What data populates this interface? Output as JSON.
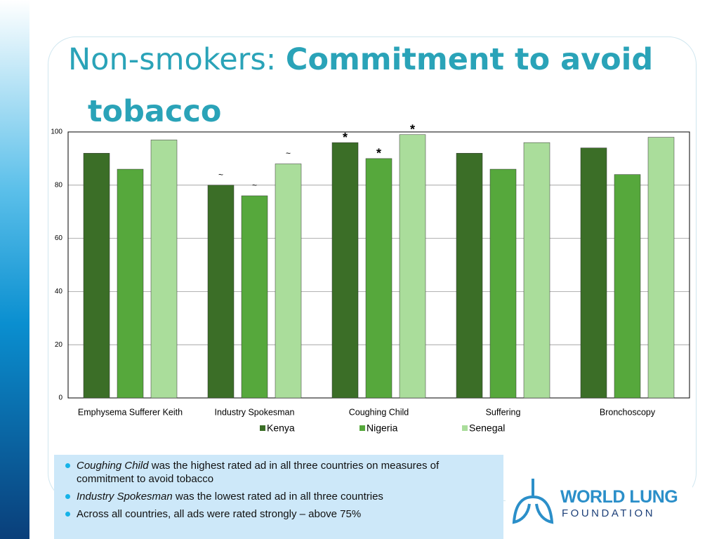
{
  "slide_title": {
    "light": "Non-smokers:",
    "bold": "Commitment to avoid tobacco"
  },
  "chart_data": {
    "type": "bar",
    "categories": [
      "Emphysema Sufferer Keith",
      "Industry Spokesman",
      "Coughing Child",
      "Suffering",
      "Bronchoscopy"
    ],
    "series": [
      {
        "name": "Kenya",
        "color": "#3b6e27",
        "values": [
          92,
          80,
          96,
          92,
          94
        ],
        "markers": [
          null,
          "~",
          "*",
          null,
          null
        ]
      },
      {
        "name": "Nigeria",
        "color": "#56a83c",
        "values": [
          86,
          76,
          90,
          86,
          84
        ],
        "markers": [
          null,
          "~",
          "*",
          null,
          null
        ]
      },
      {
        "name": "Senegal",
        "color": "#aadd9b",
        "values": [
          97,
          88,
          99,
          96,
          98
        ],
        "markers": [
          null,
          "~",
          "*",
          null,
          null
        ]
      }
    ],
    "ylim": [
      0,
      100
    ],
    "yticks": [
      0,
      20,
      40,
      60,
      80,
      100
    ],
    "grid": true,
    "legend": "bottom"
  },
  "bullets": [
    {
      "em": "Coughing Child",
      "text": " was the highest rated ad in all three countries on measures of commitment to avoid tobacco"
    },
    {
      "em": "Industry Spokesman",
      "text": " was the lowest rated ad in all three countries"
    },
    {
      "em": null,
      "text": "Across all countries, all ads were rated strongly – above 75%"
    }
  ],
  "logo": {
    "line1": "WORLD LUNG",
    "line2": "FOUNDATION"
  }
}
